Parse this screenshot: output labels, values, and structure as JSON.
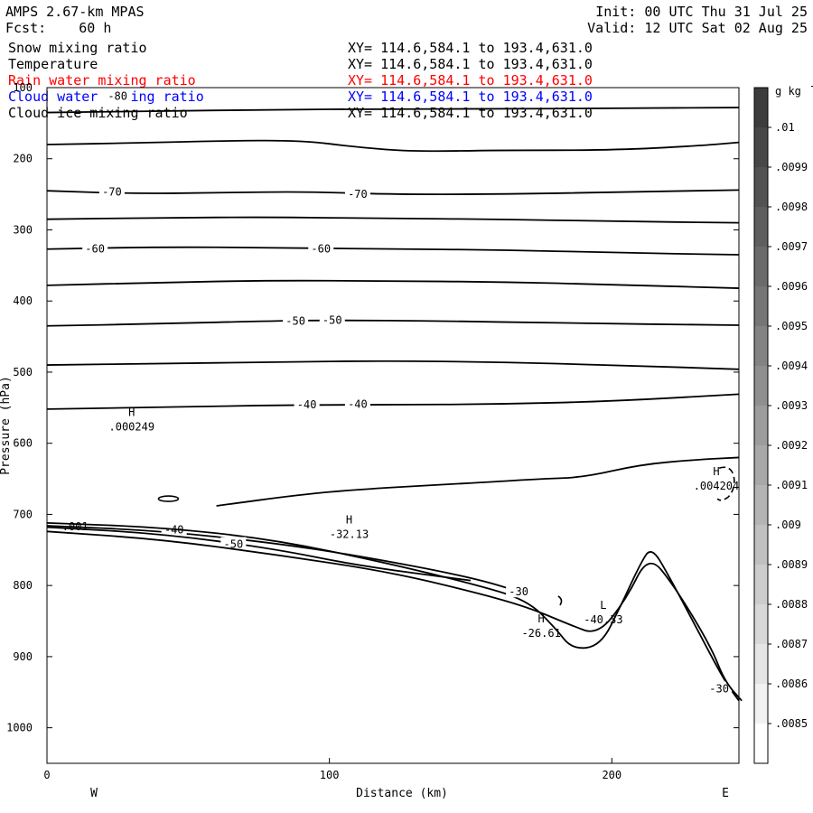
{
  "header": {
    "model": "AMPS 2.67-km MPAS",
    "forecast": "Fcst:    60 h",
    "init": "Init: 00 UTC Thu 31 Jul 25",
    "valid": "Valid: 12 UTC Sat 02 Aug 25"
  },
  "fields": [
    {
      "name": "Snow mixing ratio",
      "xy": "XY= 114.6,584.1 to 193.4,631.0",
      "color": "#000000"
    },
    {
      "name": "Temperature",
      "xy": "XY= 114.6,584.1 to 193.4,631.0",
      "color": "#000000"
    },
    {
      "name": "Rain water mixing ratio",
      "xy": "XY= 114.6,584.1 to 193.4,631.0",
      "color": "#ff0000"
    },
    {
      "name": "Cloud water mixing ratio",
      "xy": "XY= 114.6,584.1 to 193.4,631.0",
      "color": "#0000ff"
    },
    {
      "name": "Cloud ice mixing ratio",
      "xy": "XY= 114.6,584.1 to 193.4,631.0",
      "color": "#000000"
    }
  ],
  "chart_data": {
    "type": "cross-section contour",
    "xlabel": "Distance (km)",
    "ylabel": "Pressure (hPa)",
    "xlim": [
      0,
      245
    ],
    "ylim": [
      1050,
      100
    ],
    "x_ticks": [
      0,
      100,
      200
    ],
    "y_ticks": [
      100,
      200,
      300,
      400,
      500,
      600,
      700,
      800,
      900,
      1000
    ],
    "direction_labels": {
      "left": "W",
      "right": "E"
    },
    "colorbar": {
      "unit": "g kg",
      "unit_exp": "-1",
      "levels": [
        ".01",
        ".0099",
        ".0098",
        ".0097",
        ".0096",
        ".0095",
        ".0094",
        ".0093",
        ".0092",
        ".0091",
        ".009",
        ".0089",
        ".0088",
        ".0087",
        ".0086",
        ".0085"
      ],
      "colors": [
        "#3c3c3c",
        "#474747",
        "#525252",
        "#5e5e5e",
        "#6a6a6a",
        "#767676",
        "#838383",
        "#8f8f8f",
        "#9c9c9c",
        "#a8a8a8",
        "#b4b4b4",
        "#c0c0c0",
        "#cccccc",
        "#d8d8d8",
        "#e5e5e5",
        "#f2f2f2",
        "#ffffff"
      ]
    },
    "temperature_contours": [
      {
        "points": [
          [
            0,
            135
          ],
          [
            40,
            133
          ],
          [
            80,
            131
          ],
          [
            120,
            130
          ],
          [
            160,
            130
          ],
          [
            200,
            129
          ],
          [
            245,
            128
          ]
        ],
        "labels": [
          {
            "text": "-80",
            "x": 25,
            "p": 112
          }
        ]
      },
      {
        "points": [
          [
            0,
            180
          ],
          [
            30,
            178
          ],
          [
            60,
            175
          ],
          [
            90,
            174
          ],
          [
            110,
            184
          ],
          [
            130,
            190
          ],
          [
            160,
            188
          ],
          [
            200,
            188
          ],
          [
            230,
            182
          ],
          [
            245,
            177
          ]
        ],
        "labels": []
      },
      {
        "points": [
          [
            0,
            245
          ],
          [
            30,
            249
          ],
          [
            60,
            248
          ],
          [
            90,
            246
          ],
          [
            120,
            250
          ],
          [
            160,
            250
          ],
          [
            200,
            247
          ],
          [
            245,
            244
          ]
        ],
        "labels": [
          {
            "text": "-70",
            "x": 23,
            "p": 247
          },
          {
            "text": "-70",
            "x": 110,
            "p": 250
          }
        ]
      },
      {
        "points": [
          [
            0,
            285
          ],
          [
            40,
            283
          ],
          [
            80,
            282
          ],
          [
            120,
            284
          ],
          [
            160,
            285
          ],
          [
            200,
            288
          ],
          [
            245,
            290
          ]
        ],
        "labels": []
      },
      {
        "points": [
          [
            0,
            327
          ],
          [
            40,
            324
          ],
          [
            80,
            325
          ],
          [
            120,
            327
          ],
          [
            160,
            328
          ],
          [
            200,
            332
          ],
          [
            245,
            335
          ]
        ],
        "labels": [
          {
            "text": "-60",
            "x": 17,
            "p": 327
          },
          {
            "text": "-60",
            "x": 97,
            "p": 327
          }
        ]
      },
      {
        "points": [
          [
            0,
            378
          ],
          [
            40,
            374
          ],
          [
            80,
            371
          ],
          [
            120,
            372
          ],
          [
            160,
            373
          ],
          [
            200,
            377
          ],
          [
            245,
            382
          ]
        ],
        "labels": []
      },
      {
        "points": [
          [
            0,
            435
          ],
          [
            40,
            432
          ],
          [
            80,
            428
          ],
          [
            100,
            427
          ],
          [
            140,
            428
          ],
          [
            180,
            431
          ],
          [
            245,
            434
          ]
        ],
        "labels": [
          {
            "text": "-50",
            "x": 88,
            "p": 428
          },
          {
            "text": "-50",
            "x": 101,
            "p": 427
          }
        ]
      },
      {
        "points": [
          [
            0,
            490
          ],
          [
            40,
            488
          ],
          [
            80,
            486
          ],
          [
            120,
            484
          ],
          [
            160,
            486
          ],
          [
            200,
            490
          ],
          [
            245,
            496
          ]
        ],
        "labels": []
      },
      {
        "points": [
          [
            0,
            552
          ],
          [
            30,
            550
          ],
          [
            60,
            548
          ],
          [
            90,
            546
          ],
          [
            120,
            546
          ],
          [
            160,
            545
          ],
          [
            200,
            541
          ],
          [
            245,
            531
          ]
        ],
        "labels": [
          {
            "text": "-40",
            "x": 92,
            "p": 546
          },
          {
            "text": "-40",
            "x": 110,
            "p": 545
          }
        ]
      },
      {
        "points": [
          [
            0,
            716
          ],
          [
            40,
            723
          ],
          [
            80,
            740
          ],
          [
            110,
            758
          ],
          [
            150,
            788
          ],
          [
            170,
            812
          ]
        ],
        "labels": [
          {
            "text": "-40",
            "x": 45,
            "p": 722
          }
        ]
      },
      {
        "points": [
          [
            0,
            712
          ],
          [
            40,
            718
          ],
          [
            80,
            735
          ],
          [
            120,
            768
          ],
          [
            150,
            797
          ],
          [
            170,
            820
          ],
          [
            180,
            860
          ],
          [
            186,
            890
          ],
          [
            196,
            885
          ],
          [
            203,
            830
          ],
          [
            210,
            770
          ],
          [
            214,
            745
          ],
          [
            220,
            785
          ],
          [
            230,
            860
          ],
          [
            240,
            935
          ],
          [
            245,
            962
          ]
        ],
        "labels": [
          {
            "text": "-30",
            "x": 167,
            "p": 809
          },
          {
            "text": "-30",
            "x": 238,
            "p": 945
          }
        ]
      },
      {
        "points": [
          [
            0,
            718
          ],
          [
            40,
            727
          ],
          [
            80,
            748
          ],
          [
            110,
            772
          ],
          [
            150,
            793
          ]
        ],
        "labels": [
          {
            "text": "-50",
            "x": 66,
            "p": 742
          }
        ]
      },
      {
        "points": [
          [
            60,
            688
          ],
          [
            90,
            672
          ],
          [
            110,
            665
          ],
          [
            140,
            658
          ],
          [
            155,
            655
          ],
          [
            175,
            650
          ],
          [
            190,
            648
          ],
          [
            210,
            630
          ],
          [
            230,
            623
          ],
          [
            245,
            620
          ]
        ],
        "labels": []
      },
      {
        "points": [
          [
            0,
            724
          ],
          [
            40,
            735
          ],
          [
            80,
            756
          ],
          [
            120,
            780
          ],
          [
            150,
            808
          ],
          [
            170,
            830
          ],
          [
            185,
            855
          ],
          [
            195,
            870
          ],
          [
            205,
            820
          ],
          [
            213,
            756
          ],
          [
            222,
            800
          ],
          [
            235,
            885
          ],
          [
            240,
            935
          ],
          [
            246,
            962
          ]
        ],
        "labels": []
      }
    ],
    "extrema": [
      {
        "letter": "H",
        "value": ".000249",
        "x": 30,
        "p": 572
      },
      {
        "letter": "H",
        "value": "-32.13",
        "x": 107,
        "p": 723
      },
      {
        "letter": "H",
        "value": "-26.61",
        "x": 175,
        "p": 862
      },
      {
        "letter": "L",
        "value": "-40.33",
        "x": 197,
        "p": 843
      },
      {
        "letter": "H",
        "value": ".004204",
        "x": 237,
        "p": 655
      }
    ],
    "moisture_labels": [
      {
        "text": ".001",
        "x": 10,
        "p": 717
      }
    ]
  }
}
